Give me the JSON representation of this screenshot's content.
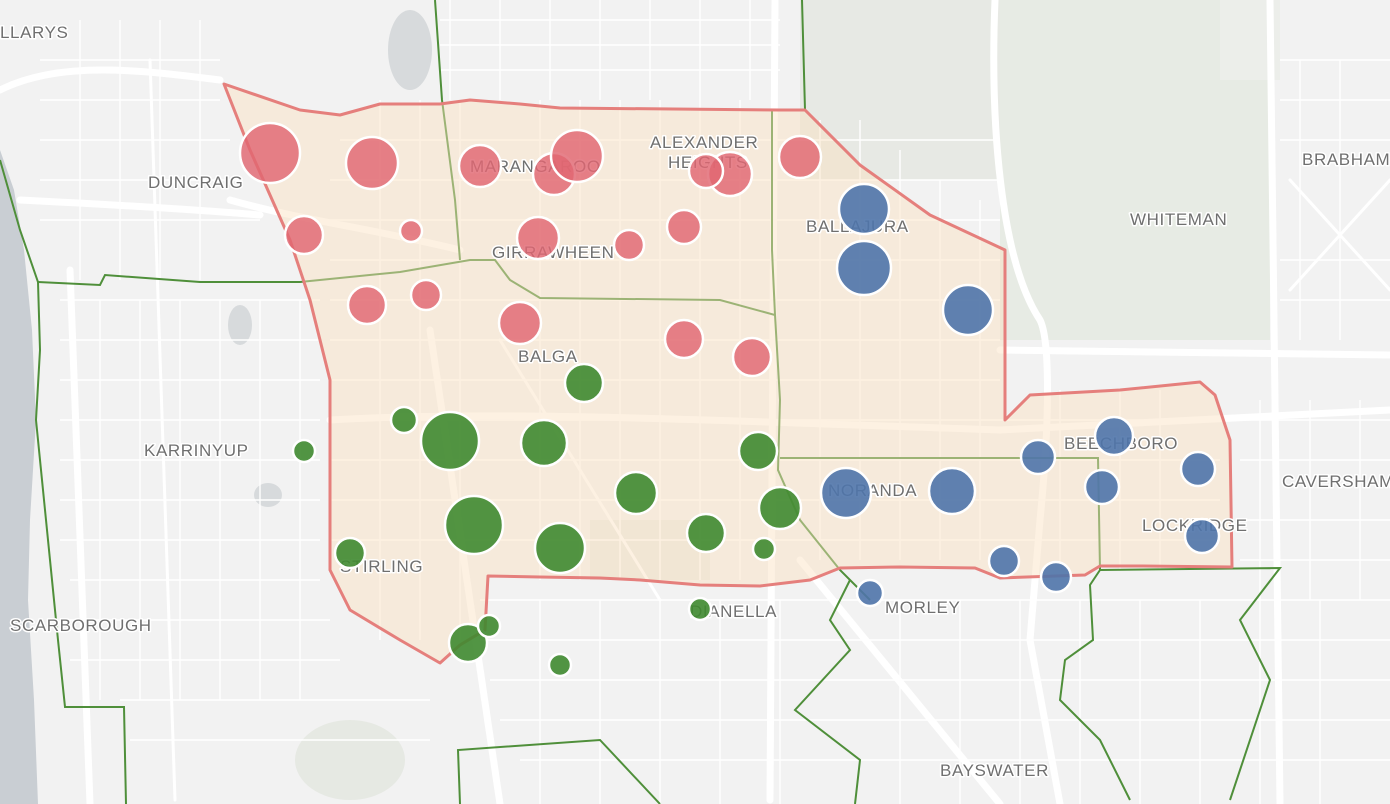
{
  "map": {
    "place_labels": [
      {
        "id": "hillarys",
        "text": "LLARYS"
      },
      {
        "id": "duncraig",
        "text": "DUNCRAIG"
      },
      {
        "id": "marangaroo",
        "text": "MARANGAROO"
      },
      {
        "id": "alexander-heights-1",
        "text": "ALEXANDER"
      },
      {
        "id": "alexander-heights-2",
        "text": "HEIGHTS"
      },
      {
        "id": "girrawheen",
        "text": "GIRRAWHEEN"
      },
      {
        "id": "ballajura",
        "text": "BALLAJURA"
      },
      {
        "id": "whiteman",
        "text": "WHITEMAN"
      },
      {
        "id": "brabham",
        "text": "BRABHAM"
      },
      {
        "id": "balga",
        "text": "BALGA"
      },
      {
        "id": "karrinyup",
        "text": "KARRINYUP"
      },
      {
        "id": "beechboro",
        "text": "BEECHBORO"
      },
      {
        "id": "caversham",
        "text": "CAVERSHAM"
      },
      {
        "id": "noranda",
        "text": "NORANDA"
      },
      {
        "id": "lockridge",
        "text": "LOCKRIDGE"
      },
      {
        "id": "stirling",
        "text": "STIRLING"
      },
      {
        "id": "scarborough",
        "text": "SCARBOROUGH"
      },
      {
        "id": "dianella",
        "text": "DIANELLA"
      },
      {
        "id": "morley",
        "text": "MORLEY"
      },
      {
        "id": "bayswater",
        "text": "BAYSWATER"
      }
    ],
    "colors": {
      "red_group": "#e06672",
      "green_group": "#3f8a30",
      "blue_group": "#4f74aa",
      "district_outline": "#e57f7c",
      "electorate_lines": "#4f8f3a",
      "ocean": "#c9ced3",
      "background": "#f2f2f2"
    },
    "bubble_groups": [
      "red",
      "green",
      "blue"
    ]
  }
}
